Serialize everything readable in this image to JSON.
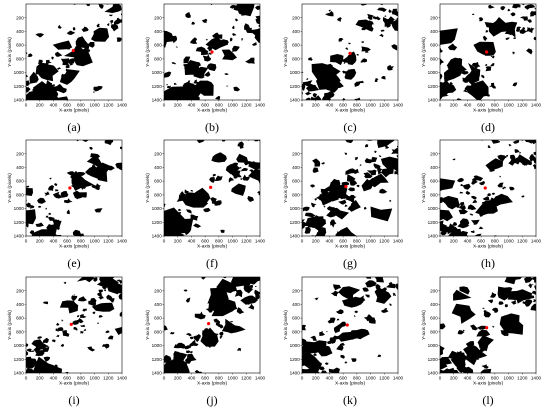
{
  "figure": {
    "ylabel": "Y-axis (pixels)",
    "xlabel": "X-axis (pixels)",
    "x_ticks": [
      "0",
      "200",
      "400",
      "600",
      "800",
      "1000",
      "1200",
      "1400"
    ],
    "y_ticks": [
      "200",
      "400",
      "600",
      "800",
      "1000",
      "1200",
      "1400"
    ],
    "marker_color": "#ff0000",
    "panels": [
      {
        "caption": "(a)",
        "marker": [
          690,
          680
        ]
      },
      {
        "caption": "(b)",
        "marker": [
          700,
          700
        ]
      },
      {
        "caption": "(c)",
        "marker": [
          700,
          720
        ]
      },
      {
        "caption": "(d)",
        "marker": [
          680,
          700
        ]
      },
      {
        "caption": "(e)",
        "marker": [
          640,
          700
        ]
      },
      {
        "caption": "(f)",
        "marker": [
          680,
          690
        ]
      },
      {
        "caption": "(g)",
        "marker": [
          640,
          680
        ]
      },
      {
        "caption": "(h)",
        "marker": [
          660,
          700
        ]
      },
      {
        "caption": "(i)",
        "marker": [
          660,
          690
        ]
      },
      {
        "caption": "(j)",
        "marker": [
          650,
          680
        ]
      },
      {
        "caption": "(k)",
        "marker": [
          660,
          700
        ]
      },
      {
        "caption": "(l)",
        "marker": [
          680,
          740
        ]
      }
    ]
  }
}
